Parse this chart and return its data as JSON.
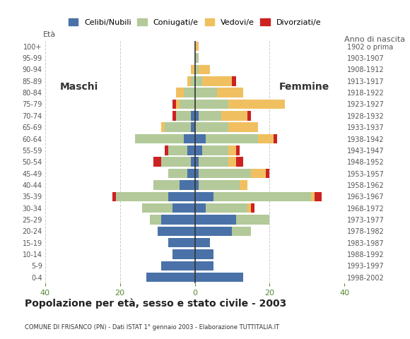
{
  "age_groups": [
    "0-4",
    "5-9",
    "10-14",
    "15-19",
    "20-24",
    "25-29",
    "30-34",
    "35-39",
    "40-44",
    "45-49",
    "50-54",
    "55-59",
    "60-64",
    "65-69",
    "70-74",
    "75-79",
    "80-84",
    "85-89",
    "90-94",
    "95-99",
    "100+"
  ],
  "birth_years": [
    "1998-2002",
    "1993-1997",
    "1988-1992",
    "1983-1987",
    "1978-1982",
    "1973-1977",
    "1968-1972",
    "1963-1967",
    "1958-1962",
    "1953-1957",
    "1948-1952",
    "1943-1947",
    "1938-1942",
    "1933-1937",
    "1928-1932",
    "1923-1927",
    "1918-1922",
    "1913-1917",
    "1908-1912",
    "1903-1907",
    "1902 o prima"
  ],
  "colors": {
    "celibi": "#4a72a8",
    "coniugati": "#b3c99a",
    "vedovi": "#f0c060",
    "divorziati": "#cc2222"
  },
  "maschi": {
    "celibi": [
      13,
      9,
      6,
      7,
      10,
      9,
      6,
      7,
      4,
      2,
      1,
      2,
      3,
      1,
      1,
      0,
      0,
      0,
      0,
      0,
      0
    ],
    "coniugati": [
      0,
      0,
      0,
      0,
      0,
      3,
      8,
      14,
      7,
      5,
      8,
      5,
      13,
      7,
      4,
      4,
      3,
      1,
      0,
      0,
      0
    ],
    "vedovi": [
      0,
      0,
      0,
      0,
      0,
      0,
      0,
      0,
      0,
      0,
      0,
      0,
      0,
      1,
      0,
      1,
      2,
      1,
      1,
      0,
      0
    ],
    "divorziati": [
      0,
      0,
      0,
      0,
      0,
      0,
      0,
      1,
      0,
      0,
      2,
      1,
      0,
      0,
      1,
      1,
      0,
      0,
      0,
      0,
      0
    ]
  },
  "femmine": {
    "celibi": [
      13,
      5,
      5,
      4,
      10,
      11,
      3,
      5,
      1,
      1,
      1,
      2,
      3,
      0,
      1,
      0,
      0,
      0,
      0,
      0,
      0
    ],
    "coniugati": [
      0,
      0,
      0,
      0,
      5,
      9,
      11,
      26,
      11,
      14,
      8,
      7,
      14,
      9,
      6,
      9,
      6,
      2,
      1,
      1,
      0
    ],
    "vedovi": [
      0,
      0,
      0,
      0,
      0,
      0,
      1,
      1,
      2,
      4,
      2,
      2,
      4,
      8,
      7,
      15,
      7,
      8,
      3,
      0,
      1
    ],
    "divorziati": [
      0,
      0,
      0,
      0,
      0,
      0,
      1,
      2,
      0,
      1,
      2,
      1,
      1,
      0,
      1,
      0,
      0,
      1,
      0,
      0,
      0
    ]
  },
  "xlim": 40,
  "title": "Popolazione per età, sesso e stato civile - 2003",
  "subtitle": "COMUNE DI FRISANCO (PN) - Dati ISTAT 1° gennaio 2003 - Elaborazione TUTTITALIA.IT",
  "ylabel_left": "Età",
  "ylabel_right": "Anno di nascita",
  "label_maschi": "Maschi",
  "label_femmine": "Femmine",
  "legend_labels": [
    "Celibi/Nubili",
    "Coniugati/e",
    "Vedovi/e",
    "Divorziati/e"
  ],
  "bg_color": "#ffffff",
  "grid_color": "#cccccc"
}
